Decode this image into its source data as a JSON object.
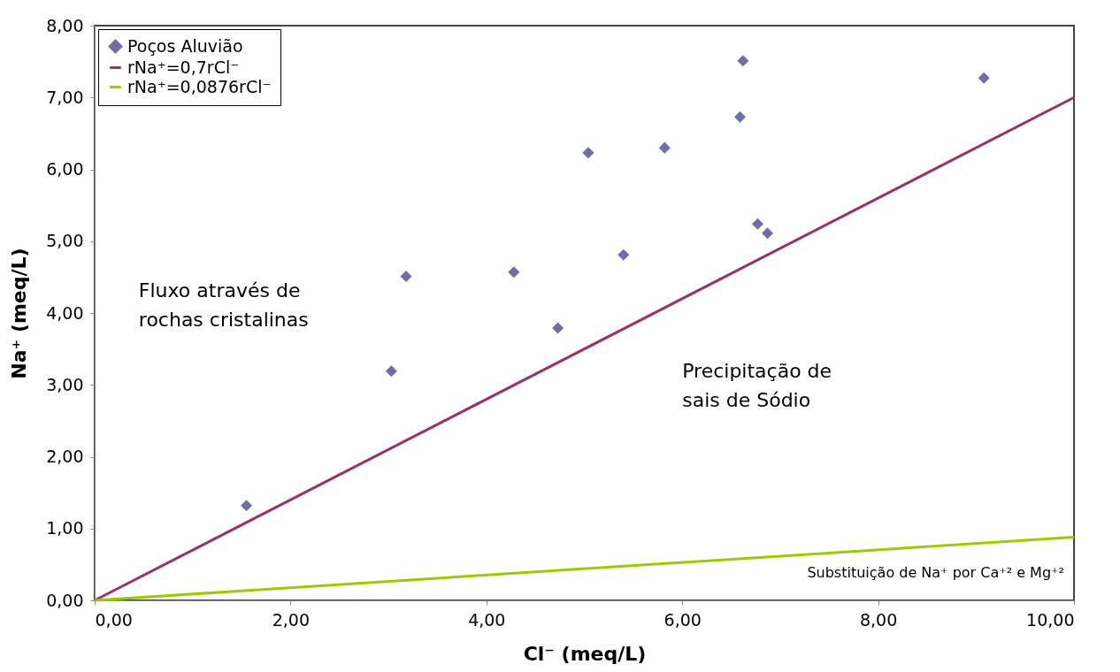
{
  "chart_data": {
    "type": "scatter",
    "xlabel": "Cl⁻ (meq/L)",
    "ylabel": "Na⁺ (meq/L)",
    "series": [
      {
        "name": "Poços Aluvião",
        "color": "#6f6fa6",
        "marker": "diamond",
        "x": [
          1.55,
          3.03,
          3.18,
          4.28,
          4.73,
          5.04,
          5.4,
          5.82,
          6.59,
          6.62,
          6.77,
          6.87,
          9.08
        ],
        "values": [
          1.32,
          3.19,
          4.51,
          4.57,
          3.79,
          6.23,
          4.81,
          6.3,
          6.73,
          7.51,
          5.24,
          5.11,
          7.27
        ]
      },
      {
        "name": "rNa⁺=0,7rCl⁻",
        "type": "line",
        "color": "#993366",
        "marker": "none",
        "line_style": "solid",
        "x": [
          0,
          10
        ],
        "values": [
          0,
          7
        ]
      },
      {
        "name": "rNa⁺=0,0876rCl⁻",
        "type": "line",
        "color": "#99cc00",
        "marker": "none",
        "line_style": "solid",
        "x": [
          0,
          10
        ],
        "values": [
          0,
          0.88
        ]
      }
    ],
    "xlim": [
      0,
      10
    ],
    "ylim": [
      0,
      8
    ],
    "xticks": [
      {
        "value": 0,
        "label": "0,00"
      },
      {
        "value": 2,
        "label": "2,00"
      },
      {
        "value": 4,
        "label": "4,00"
      },
      {
        "value": 6,
        "label": "6,00"
      },
      {
        "value": 8,
        "label": "8,00"
      },
      {
        "value": 10,
        "label": "10,00"
      }
    ],
    "yticks": [
      {
        "value": 0,
        "label": "0,00"
      },
      {
        "value": 1,
        "label": "1,00"
      },
      {
        "value": 2,
        "label": "2,00"
      },
      {
        "value": 3,
        "label": "3,00"
      },
      {
        "value": 4,
        "label": "4,00"
      },
      {
        "value": 5,
        "label": "5,00"
      },
      {
        "value": 6,
        "label": "6,00"
      },
      {
        "value": 7,
        "label": "7,00"
      },
      {
        "value": 8,
        "label": "8,00"
      }
    ],
    "annotations": [
      "Fluxo através de\nrochas cristalinas",
      "Precipitação de\nsais de Sódio",
      "Substituição de Na⁺ por Ca⁺² e Mg⁺²"
    ],
    "grid": false,
    "legend": "top left"
  }
}
